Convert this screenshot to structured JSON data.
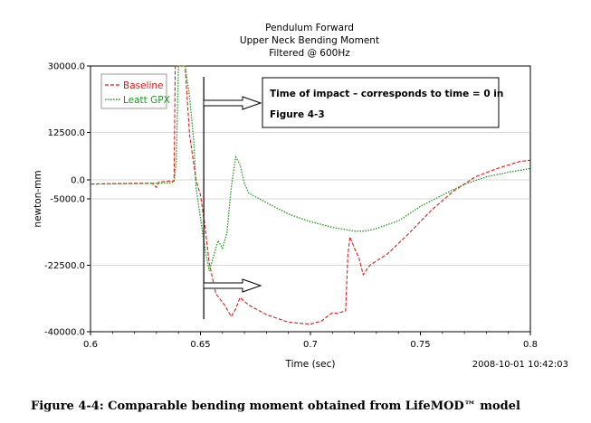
{
  "chart_data": {
    "type": "line",
    "title_lines": [
      "Pendulum Forward",
      "Upper Neck Bending Moment",
      "Filtered @ 600Hz"
    ],
    "xlabel": "Time (sec)",
    "ylabel": "newton-mm",
    "xlim": [
      0.6,
      0.8
    ],
    "ylim": [
      -40000,
      30000
    ],
    "x_ticks": [
      {
        "value": 0.6,
        "label": "0.6"
      },
      {
        "value": 0.65,
        "label": "0.65"
      },
      {
        "value": 0.7,
        "label": "0.7"
      },
      {
        "value": 0.75,
        "label": "0.75"
      },
      {
        "value": 0.8,
        "label": "0.8"
      }
    ],
    "y_ticks": [
      {
        "value": 30000,
        "label": "30000.0"
      },
      {
        "value": 12500,
        "label": "12500.0"
      },
      {
        "value": 0,
        "label": "0.0"
      },
      {
        "value": -5000,
        "label": "-5000.0"
      },
      {
        "value": -22500,
        "label": "-22500.0"
      },
      {
        "value": -40000,
        "label": "-40000.0"
      }
    ],
    "grid": "horizontal",
    "legend_position": "top-left",
    "series": [
      {
        "name": "Baseline",
        "color": "#e01818",
        "style": "dashed",
        "points": [
          [
            0.6,
            -1100
          ],
          [
            0.61,
            -1000
          ],
          [
            0.62,
            -900
          ],
          [
            0.628,
            -900
          ],
          [
            0.63,
            -2000
          ],
          [
            0.631,
            -600
          ],
          [
            0.636,
            -300
          ],
          [
            0.638,
            -300
          ],
          [
            0.6385,
            30000
          ],
          [
            0.64,
            30000
          ],
          [
            0.643,
            30000
          ],
          [
            0.645,
            12000
          ],
          [
            0.648,
            0
          ],
          [
            0.65,
            -4000
          ],
          [
            0.652,
            -12000
          ],
          [
            0.654,
            -22000
          ],
          [
            0.657,
            -30000
          ],
          [
            0.661,
            -33000
          ],
          [
            0.664,
            -36000
          ],
          [
            0.666,
            -34000
          ],
          [
            0.668,
            -31000
          ],
          [
            0.672,
            -33000
          ],
          [
            0.68,
            -35500
          ],
          [
            0.69,
            -37500
          ],
          [
            0.7,
            -38000
          ],
          [
            0.705,
            -37200
          ],
          [
            0.71,
            -35000
          ],
          [
            0.712,
            -35200
          ],
          [
            0.716,
            -34500
          ],
          [
            0.717,
            -20000
          ],
          [
            0.718,
            -15000
          ],
          [
            0.72,
            -18000
          ],
          [
            0.722,
            -20500
          ],
          [
            0.724,
            -25000
          ],
          [
            0.727,
            -22500
          ],
          [
            0.735,
            -19500
          ],
          [
            0.745,
            -14000
          ],
          [
            0.755,
            -8000
          ],
          [
            0.765,
            -3000
          ],
          [
            0.775,
            800
          ],
          [
            0.785,
            3000
          ],
          [
            0.795,
            4800
          ],
          [
            0.8,
            5200
          ]
        ]
      },
      {
        "name": "Leatt GPX",
        "color": "#1a9a1a",
        "style": "dotted",
        "points": [
          [
            0.6,
            -1100
          ],
          [
            0.62,
            -1000
          ],
          [
            0.636,
            -800
          ],
          [
            0.638,
            -500
          ],
          [
            0.639,
            5000
          ],
          [
            0.64,
            30000
          ],
          [
            0.643,
            30000
          ],
          [
            0.645,
            22000
          ],
          [
            0.647,
            10000
          ],
          [
            0.648,
            -2000
          ],
          [
            0.65,
            -10000
          ],
          [
            0.652,
            -18000
          ],
          [
            0.654,
            -24000
          ],
          [
            0.656,
            -20000
          ],
          [
            0.658,
            -16000
          ],
          [
            0.66,
            -18000
          ],
          [
            0.662,
            -14000
          ],
          [
            0.664,
            -2000
          ],
          [
            0.666,
            6000
          ],
          [
            0.668,
            4000
          ],
          [
            0.67,
            -1000
          ],
          [
            0.672,
            -3500
          ],
          [
            0.68,
            -6000
          ],
          [
            0.69,
            -9000
          ],
          [
            0.7,
            -11000
          ],
          [
            0.71,
            -12500
          ],
          [
            0.72,
            -13500
          ],
          [
            0.725,
            -13500
          ],
          [
            0.73,
            -12800
          ],
          [
            0.74,
            -10800
          ],
          [
            0.75,
            -7000
          ],
          [
            0.76,
            -4000
          ],
          [
            0.77,
            -1200
          ],
          [
            0.78,
            800
          ],
          [
            0.79,
            2000
          ],
          [
            0.8,
            3000
          ]
        ]
      }
    ],
    "impact_time": 0.6515,
    "annotations": {
      "callout_lines": [
        "Time of impact – corresponds to time = 0 in",
        "Figure 4-3"
      ]
    },
    "timestamp": "2008-10-01 10:42:03"
  },
  "caption": "Figure 4-4: Comparable bending moment obtained from LifeMOD™ model"
}
